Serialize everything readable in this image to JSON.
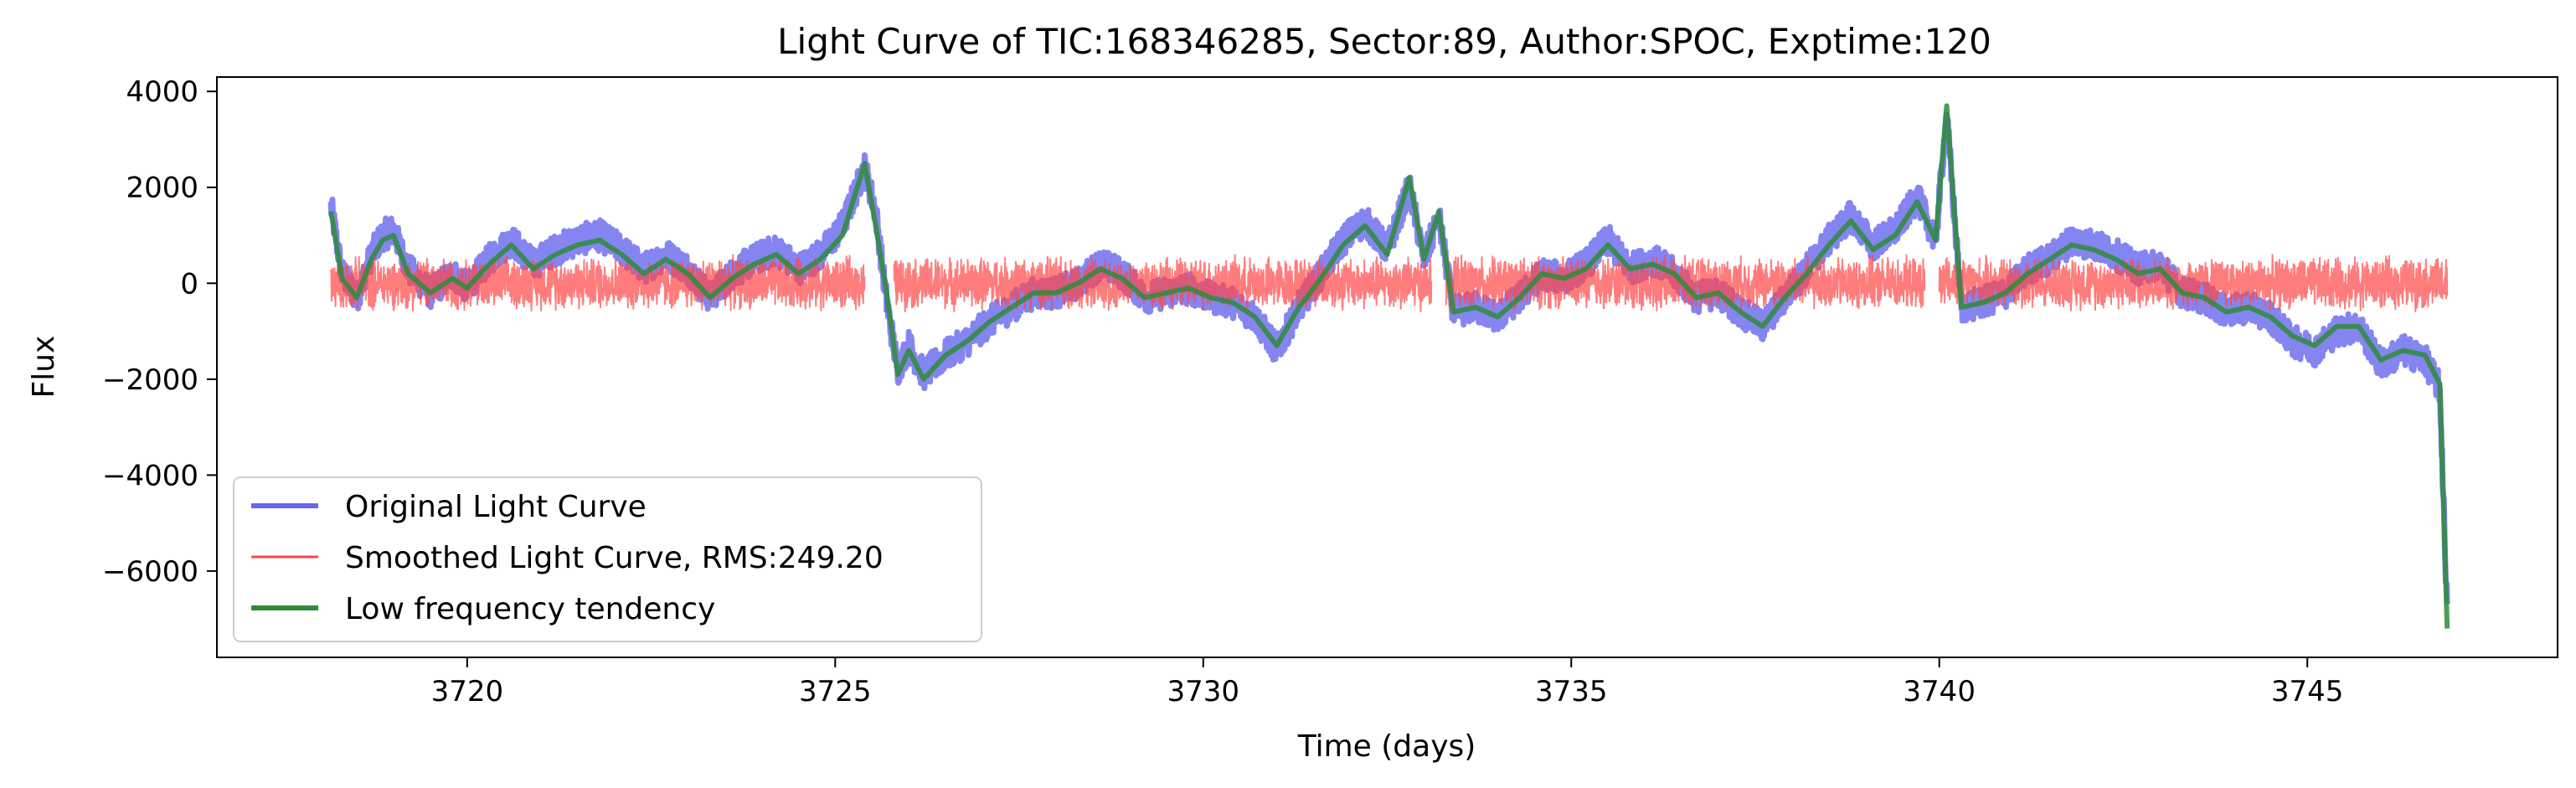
{
  "chart_data": {
    "type": "line",
    "title": "Light Curve of TIC:168346285, Sector:89, Author:SPOC, Exptime:120",
    "xlabel": "Time (days)",
    "ylabel": "Flux",
    "xlim": [
      3716.6,
      3748.4
    ],
    "ylim": [
      -7800,
      4300
    ],
    "x_ticks": [
      3720,
      3725,
      3730,
      3735,
      3740,
      3745
    ],
    "y_ticks": [
      4000,
      2000,
      0,
      -2000,
      -4000,
      -6000
    ],
    "y_tick_labels": [
      "4000",
      "2000",
      "0",
      "−2000",
      "−4000",
      "−6000"
    ],
    "grid": false,
    "legend_position": "lower-left",
    "series": [
      {
        "name": "Original Light Curve",
        "color": "#6666ee",
        "x": [
          3718.15,
          3718.3,
          3718.5,
          3718.7,
          3718.85,
          3719.0,
          3719.2,
          3719.5,
          3719.8,
          3720.0,
          3720.3,
          3720.6,
          3720.9,
          3721.2,
          3721.5,
          3721.8,
          3722.1,
          3722.4,
          3722.7,
          3723.0,
          3723.3,
          3723.6,
          3723.9,
          3724.2,
          3724.5,
          3724.8,
          3725.1,
          3725.4,
          3725.55,
          3725.7,
          3725.85,
          3726.0,
          3726.2,
          3726.5,
          3726.8,
          3727.1,
          3727.4,
          3727.7,
          3728.0,
          3728.3,
          3728.6,
          3728.9,
          3729.2,
          3729.5,
          3729.8,
          3730.1,
          3730.4,
          3730.7,
          3731.0,
          3731.3,
          3731.6,
          3731.9,
          3732.2,
          3732.5,
          3732.8,
          3733.0,
          3733.2,
          3733.4,
          3733.7,
          3734.0,
          3734.3,
          3734.6,
          3734.9,
          3735.2,
          3735.5,
          3735.8,
          3736.1,
          3736.4,
          3736.7,
          3737.0,
          3737.3,
          3737.6,
          3737.9,
          3738.2,
          3738.5,
          3738.8,
          3739.1,
          3739.4,
          3739.7,
          3739.95,
          3740.1,
          3740.3,
          3740.6,
          3740.9,
          3741.2,
          3741.5,
          3741.8,
          3742.1,
          3742.4,
          3742.7,
          3743.0,
          3743.3,
          3743.6,
          3743.9,
          3744.2,
          3744.5,
          3744.8,
          3745.1,
          3745.4,
          3745.7,
          3746.0,
          3746.3,
          3746.6,
          3746.8,
          3746.9
        ],
        "y": [
          1600,
          200,
          -300,
          600,
          1000,
          1100,
          300,
          -200,
          200,
          -100,
          500,
          900,
          400,
          700,
          900,
          1000,
          700,
          300,
          600,
          300,
          -300,
          200,
          500,
          700,
          300,
          600,
          1200,
          2400,
          1500,
          -400,
          -1800,
          -1300,
          -1900,
          -1500,
          -1200,
          -800,
          -500,
          -200,
          -200,
          0,
          400,
          200,
          -300,
          -200,
          -100,
          -300,
          -400,
          -700,
          -1400,
          -500,
          200,
          900,
          1300,
          700,
          2000,
          500,
          1400,
          -600,
          -500,
          -700,
          -300,
          200,
          100,
          400,
          900,
          300,
          500,
          200,
          -300,
          -200,
          -600,
          -900,
          -300,
          300,
          900,
          1400,
          800,
          1100,
          1800,
          900,
          3500,
          -500,
          -400,
          -200,
          300,
          500,
          900,
          800,
          600,
          300,
          400,
          -200,
          -300,
          -600,
          -500,
          -700,
          -1200,
          -1400,
          -1000,
          -900,
          -1700,
          -1400,
          -1600,
          -2200,
          -6800
        ],
        "line_width": 7,
        "opacity": 0.8
      },
      {
        "name": "Smoothed Light Curve, RMS:249.20",
        "color": "#ff4444",
        "x": [
          3718.15,
          3725.4,
          3725.8,
          3733.1,
          3733.3,
          3739.8,
          3740.0,
          3746.9
        ],
        "y": [
          0,
          0,
          0,
          0,
          0,
          0,
          0,
          0
        ],
        "amplitude": 500,
        "line_width": 2,
        "opacity": 0.7
      },
      {
        "name": "Low frequency tendency",
        "color": "#2e8b3a",
        "x": [
          3718.15,
          3718.3,
          3718.5,
          3718.7,
          3718.85,
          3719.0,
          3719.2,
          3719.5,
          3719.8,
          3720.0,
          3720.3,
          3720.6,
          3720.9,
          3721.2,
          3721.5,
          3721.8,
          3722.1,
          3722.4,
          3722.7,
          3723.0,
          3723.3,
          3723.6,
          3723.9,
          3724.2,
          3724.5,
          3724.8,
          3725.1,
          3725.4,
          3725.55,
          3725.7,
          3725.85,
          3726.0,
          3726.2,
          3726.5,
          3726.8,
          3727.1,
          3727.4,
          3727.7,
          3728.0,
          3728.3,
          3728.6,
          3728.9,
          3729.2,
          3729.5,
          3729.8,
          3730.1,
          3730.4,
          3730.7,
          3731.0,
          3731.3,
          3731.6,
          3731.9,
          3732.2,
          3732.5,
          3732.8,
          3733.0,
          3733.2,
          3733.4,
          3733.7,
          3734.0,
          3734.3,
          3734.6,
          3734.9,
          3735.2,
          3735.5,
          3735.8,
          3736.1,
          3736.4,
          3736.7,
          3737.0,
          3737.3,
          3737.6,
          3737.9,
          3738.2,
          3738.5,
          3738.8,
          3739.1,
          3739.4,
          3739.7,
          3739.95,
          3740.1,
          3740.3,
          3740.6,
          3740.9,
          3741.2,
          3741.5,
          3741.8,
          3742.1,
          3742.4,
          3742.7,
          3743.0,
          3743.3,
          3743.6,
          3743.9,
          3744.2,
          3744.5,
          3744.8,
          3745.1,
          3745.4,
          3745.7,
          3746.0,
          3746.3,
          3746.6,
          3746.8,
          3746.9
        ],
        "y": [
          1500,
          100,
          -300,
          500,
          900,
          1000,
          200,
          -200,
          100,
          -100,
          400,
          800,
          300,
          600,
          800,
          900,
          600,
          200,
          500,
          200,
          -300,
          100,
          400,
          600,
          200,
          500,
          1000,
          2500,
          1200,
          -200,
          -1900,
          -1400,
          -2000,
          -1500,
          -1200,
          -800,
          -500,
          -200,
          -200,
          0,
          300,
          100,
          -300,
          -200,
          -100,
          -300,
          -400,
          -700,
          -1300,
          -500,
          100,
          800,
          1200,
          600,
          2200,
          500,
          1500,
          -600,
          -500,
          -700,
          -300,
          200,
          100,
          300,
          800,
          300,
          400,
          200,
          -300,
          -200,
          -600,
          -900,
          -300,
          200,
          800,
          1300,
          700,
          1000,
          1700,
          900,
          3700,
          -500,
          -400,
          -200,
          200,
          500,
          800,
          700,
          500,
          200,
          300,
          -200,
          -300,
          -600,
          -500,
          -700,
          -1100,
          -1300,
          -900,
          -900,
          -1600,
          -1400,
          -1500,
          -2100,
          -7200
        ],
        "line_width": 6,
        "opacity": 0.85
      }
    ]
  }
}
